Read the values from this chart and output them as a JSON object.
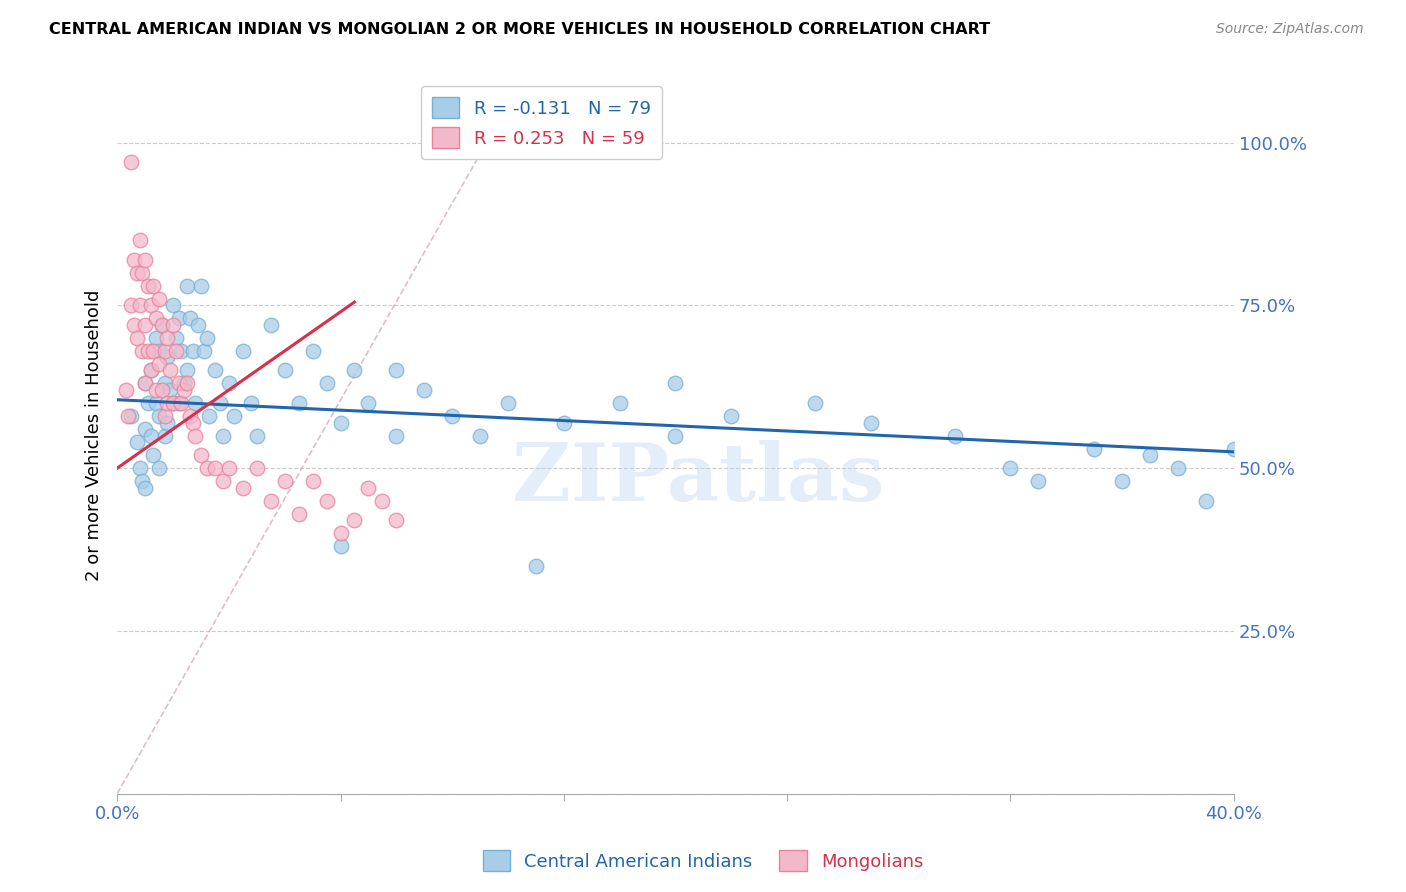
{
  "title": "CENTRAL AMERICAN INDIAN VS MONGOLIAN 2 OR MORE VEHICLES IN HOUSEHOLD CORRELATION CHART",
  "source": "Source: ZipAtlas.com",
  "ylabel": "2 or more Vehicles in Household",
  "yticks": [
    0.0,
    0.25,
    0.5,
    0.75,
    1.0
  ],
  "ytick_labels": [
    "",
    "25.0%",
    "50.0%",
    "75.0%",
    "100.0%"
  ],
  "xmin": 0.0,
  "xmax": 0.4,
  "ymin": 0.0,
  "ymax": 1.1,
  "blue_R": -0.131,
  "blue_N": 79,
  "pink_R": 0.253,
  "pink_N": 59,
  "blue_color": "#a8cde8",
  "pink_color": "#f4b8cb",
  "blue_edge_color": "#7aafd4",
  "pink_edge_color": "#e8829a",
  "blue_line_color": "#2166ac",
  "pink_line_color": "#d6304a",
  "legend1_label": "Central American Indians",
  "legend2_label": "Mongolians",
  "watermark": "ZIPatlas",
  "blue_trendline_x": [
    0.0,
    0.4
  ],
  "blue_trendline_y": [
    0.605,
    0.525
  ],
  "pink_trendline_x": [
    0.0,
    0.085
  ],
  "pink_trendline_y": [
    0.5,
    0.755
  ],
  "diag_line_x": [
    0.0,
    0.135
  ],
  "diag_line_y": [
    0.0,
    1.02
  ],
  "blue_scatter_x": [
    0.005,
    0.007,
    0.008,
    0.009,
    0.01,
    0.01,
    0.01,
    0.011,
    0.012,
    0.012,
    0.013,
    0.014,
    0.014,
    0.015,
    0.015,
    0.015,
    0.016,
    0.017,
    0.017,
    0.018,
    0.018,
    0.019,
    0.02,
    0.02,
    0.021,
    0.022,
    0.022,
    0.023,
    0.024,
    0.025,
    0.025,
    0.026,
    0.027,
    0.028,
    0.029,
    0.03,
    0.031,
    0.032,
    0.033,
    0.035,
    0.037,
    0.038,
    0.04,
    0.042,
    0.045,
    0.048,
    0.05,
    0.055,
    0.06,
    0.065,
    0.07,
    0.075,
    0.08,
    0.085,
    0.09,
    0.1,
    0.11,
    0.12,
    0.13,
    0.14,
    0.16,
    0.18,
    0.2,
    0.22,
    0.25,
    0.27,
    0.3,
    0.32,
    0.33,
    0.35,
    0.36,
    0.37,
    0.38,
    0.39,
    0.4,
    0.2,
    0.15,
    0.1,
    0.08
  ],
  "blue_scatter_y": [
    0.58,
    0.54,
    0.5,
    0.48,
    0.63,
    0.56,
    0.47,
    0.6,
    0.65,
    0.55,
    0.52,
    0.7,
    0.6,
    0.68,
    0.58,
    0.5,
    0.72,
    0.63,
    0.55,
    0.67,
    0.57,
    0.62,
    0.75,
    0.6,
    0.7,
    0.73,
    0.6,
    0.68,
    0.63,
    0.78,
    0.65,
    0.73,
    0.68,
    0.6,
    0.72,
    0.78,
    0.68,
    0.7,
    0.58,
    0.65,
    0.6,
    0.55,
    0.63,
    0.58,
    0.68,
    0.6,
    0.55,
    0.72,
    0.65,
    0.6,
    0.68,
    0.63,
    0.57,
    0.65,
    0.6,
    0.65,
    0.62,
    0.58,
    0.55,
    0.6,
    0.57,
    0.6,
    0.55,
    0.58,
    0.6,
    0.57,
    0.55,
    0.5,
    0.48,
    0.53,
    0.48,
    0.52,
    0.5,
    0.45,
    0.53,
    0.63,
    0.35,
    0.55,
    0.38
  ],
  "pink_scatter_x": [
    0.003,
    0.004,
    0.005,
    0.005,
    0.006,
    0.006,
    0.007,
    0.007,
    0.008,
    0.008,
    0.009,
    0.009,
    0.01,
    0.01,
    0.01,
    0.011,
    0.011,
    0.012,
    0.012,
    0.013,
    0.013,
    0.014,
    0.014,
    0.015,
    0.015,
    0.016,
    0.016,
    0.017,
    0.017,
    0.018,
    0.018,
    0.019,
    0.02,
    0.02,
    0.021,
    0.022,
    0.023,
    0.024,
    0.025,
    0.026,
    0.027,
    0.028,
    0.03,
    0.032,
    0.035,
    0.038,
    0.04,
    0.045,
    0.05,
    0.055,
    0.06,
    0.065,
    0.07,
    0.075,
    0.08,
    0.085,
    0.09,
    0.095,
    0.1
  ],
  "pink_scatter_y": [
    0.62,
    0.58,
    0.97,
    0.75,
    0.82,
    0.72,
    0.8,
    0.7,
    0.85,
    0.75,
    0.8,
    0.68,
    0.82,
    0.72,
    0.63,
    0.78,
    0.68,
    0.75,
    0.65,
    0.78,
    0.68,
    0.73,
    0.62,
    0.76,
    0.66,
    0.72,
    0.62,
    0.68,
    0.58,
    0.7,
    0.6,
    0.65,
    0.72,
    0.6,
    0.68,
    0.63,
    0.6,
    0.62,
    0.63,
    0.58,
    0.57,
    0.55,
    0.52,
    0.5,
    0.5,
    0.48,
    0.5,
    0.47,
    0.5,
    0.45,
    0.48,
    0.43,
    0.48,
    0.45,
    0.4,
    0.42,
    0.47,
    0.45,
    0.42
  ]
}
